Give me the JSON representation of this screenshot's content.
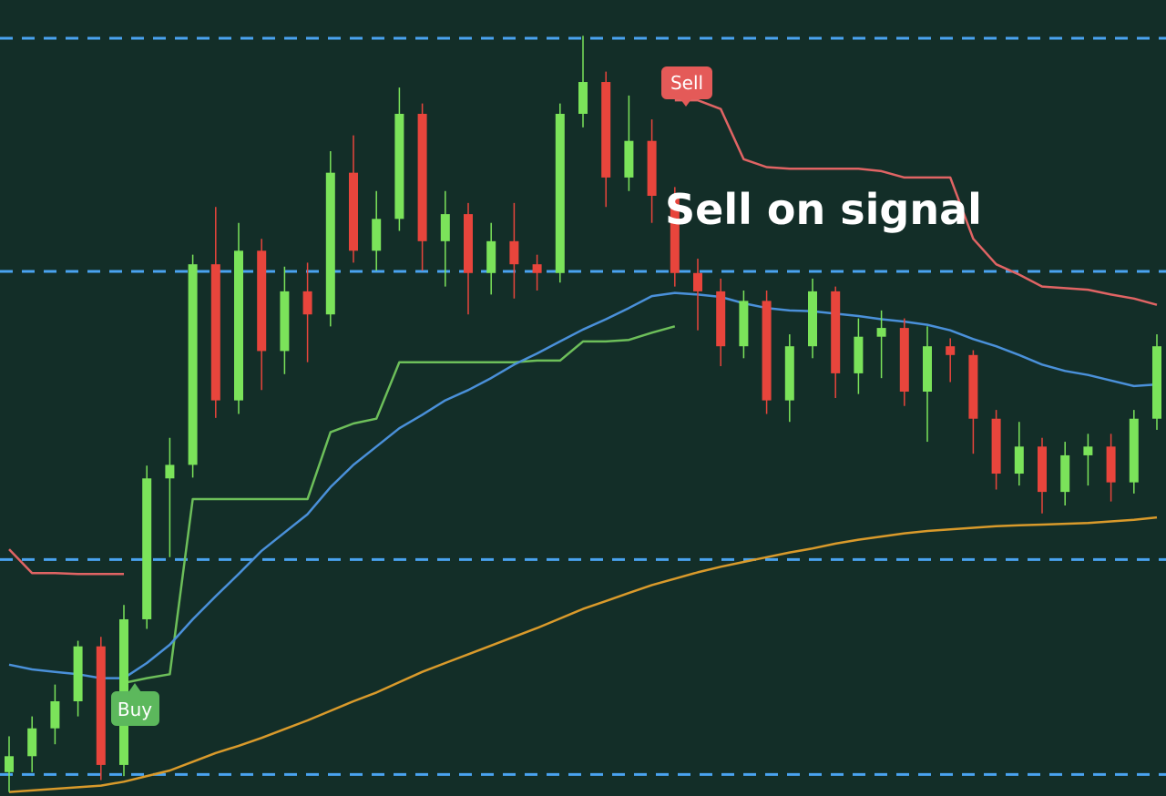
{
  "chart_data": {
    "type": "candlestick",
    "ylim": [
      0,
      100
    ],
    "up_color": "#7be35a",
    "down_color": "#e8453c",
    "open": [
      3.0,
      5.0,
      8.5,
      11.9,
      18.8,
      3.9,
      22.2,
      39.9,
      41.6,
      66.8,
      49.7,
      68.5,
      55.9,
      63.4,
      60.5,
      78.3,
      68.5,
      72.5,
      85.7,
      69.7,
      73.1,
      65.7,
      69.7,
      66.8,
      65.7,
      85.7,
      89.7,
      77.7,
      82.3,
      75.4,
      65.7,
      63.4,
      56.5,
      62.2,
      49.7,
      56.5,
      63.4,
      53.1,
      57.7,
      58.8,
      50.8,
      56.5,
      55.4,
      47.4,
      40.5,
      43.9,
      38.2,
      42.8,
      43.9,
      39.4,
      47.4
    ],
    "high": [
      7.5,
      10.0,
      14.0,
      19.5,
      20.0,
      24.0,
      41.5,
      45.0,
      68.0,
      74.0,
      72.0,
      70.0,
      66.5,
      67.0,
      81.0,
      83.0,
      76.0,
      89.0,
      87.0,
      76.0,
      74.5,
      72.0,
      74.5,
      68.0,
      87.0,
      95.5,
      91.0,
      88.0,
      85.0,
      76.5,
      67.5,
      65.0,
      63.5,
      63.5,
      58.0,
      65.0,
      64.0,
      60.0,
      61.0,
      60.0,
      59.0,
      57.5,
      56.0,
      48.5,
      47.0,
      45.0,
      44.5,
      45.5,
      45.5,
      48.5,
      58.0
    ],
    "low": [
      0.5,
      3.0,
      6.5,
      10.0,
      2.0,
      2.5,
      21.0,
      30.0,
      40.0,
      47.5,
      48.0,
      51.0,
      53.0,
      54.5,
      59.0,
      67.0,
      66.0,
      71.0,
      66.0,
      64.0,
      60.5,
      63.0,
      62.5,
      63.5,
      64.5,
      84.0,
      74.0,
      76.0,
      72.0,
      64.0,
      58.5,
      54.0,
      55.0,
      48.0,
      47.0,
      55.0,
      50.0,
      50.5,
      52.5,
      49.0,
      44.5,
      52.0,
      43.0,
      38.5,
      39.0,
      35.5,
      36.5,
      39.0,
      37.0,
      38.0,
      46.0
    ],
    "close": [
      5.0,
      8.5,
      11.9,
      18.8,
      3.9,
      22.2,
      39.9,
      41.6,
      66.8,
      49.7,
      68.5,
      55.9,
      63.4,
      60.5,
      78.3,
      68.5,
      72.5,
      85.7,
      69.7,
      73.1,
      65.7,
      69.7,
      66.8,
      65.7,
      85.7,
      89.7,
      77.7,
      82.3,
      75.4,
      65.7,
      63.4,
      56.5,
      62.2,
      49.7,
      56.5,
      63.4,
      53.1,
      57.7,
      58.8,
      50.8,
      56.5,
      55.4,
      47.4,
      40.5,
      43.9,
      38.2,
      42.8,
      43.9,
      39.4,
      47.4,
      56.5
    ],
    "lines": [
      {
        "color": "#e06464",
        "values": [
          31.0,
          28.0,
          28.0,
          27.9,
          27.9,
          27.9,
          null,
          null,
          null,
          null,
          null,
          null,
          null,
          null,
          null,
          null,
          null,
          null,
          null,
          null,
          null,
          null,
          null,
          null,
          null,
          null,
          null,
          null,
          null,
          87.4,
          87.4,
          86.3,
          80.0,
          79.0,
          78.8,
          78.8,
          78.8,
          78.8,
          78.5,
          77.7,
          77.7,
          77.7,
          70.0,
          66.8,
          65.5,
          64.0,
          63.8,
          63.6,
          63.0,
          62.5,
          61.7
        ]
      },
      {
        "color": "#6dbf5a",
        "values": [
          null,
          null,
          null,
          null,
          null,
          14.2,
          14.8,
          15.3,
          37.3,
          37.3,
          37.3,
          37.3,
          37.3,
          37.3,
          45.7,
          46.8,
          47.4,
          54.5,
          54.5,
          54.5,
          54.5,
          54.5,
          54.5,
          54.7,
          54.7,
          57.1,
          57.1,
          57.3,
          58.2,
          59.0,
          null,
          null,
          null,
          null,
          null,
          null,
          null,
          null,
          null,
          null,
          null,
          null,
          null,
          null,
          null,
          null,
          null,
          null,
          null,
          null,
          null
        ]
      },
      {
        "color": "#4a90d9",
        "values": [
          16.5,
          15.9,
          15.6,
          15.3,
          14.8,
          14.8,
          16.7,
          19.0,
          22.2,
          25.1,
          27.9,
          30.8,
          33.1,
          35.4,
          38.8,
          41.6,
          43.9,
          46.2,
          47.9,
          49.7,
          51.0,
          52.5,
          54.2,
          55.6,
          57.1,
          58.6,
          59.9,
          61.3,
          62.8,
          63.2,
          63.0,
          62.7,
          61.9,
          61.3,
          61.0,
          60.9,
          60.6,
          60.3,
          59.9,
          59.6,
          59.2,
          58.5,
          57.4,
          56.5,
          55.4,
          54.2,
          53.4,
          52.9,
          52.2,
          51.5,
          51.7
        ]
      },
      {
        "color": "#d99a2b",
        "values": [
          0.5,
          0.7,
          0.9,
          1.1,
          1.3,
          1.8,
          2.5,
          3.2,
          4.3,
          5.4,
          6.3,
          7.3,
          8.4,
          9.5,
          10.7,
          11.9,
          13.0,
          14.3,
          15.6,
          16.7,
          17.8,
          18.9,
          20.0,
          21.1,
          22.3,
          23.5,
          24.5,
          25.5,
          26.5,
          27.3,
          28.1,
          28.8,
          29.4,
          30.0,
          30.6,
          31.1,
          31.7,
          32.2,
          32.6,
          33.0,
          33.3,
          33.5,
          33.7,
          33.9,
          34.0,
          34.1,
          34.2,
          34.3,
          34.5,
          34.7,
          35.0
        ]
      }
    ],
    "levels": {
      "color": "#4aa3f0",
      "values": [
        95.2,
        65.9,
        29.7,
        2.7
      ]
    },
    "sell_label": "Sell",
    "buy_label": "Buy",
    "annotation": "Sell on signal"
  }
}
